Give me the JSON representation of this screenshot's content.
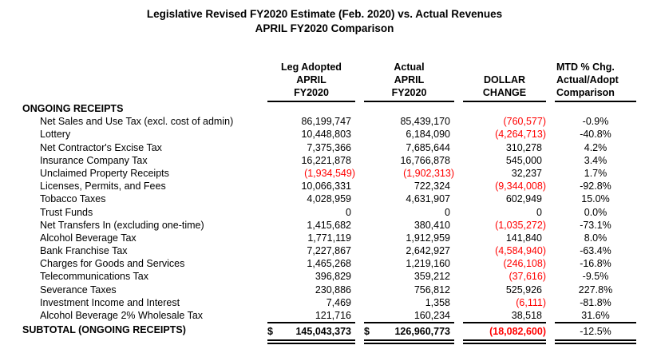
{
  "title": {
    "line1": "Legislative Revised FY2020 Estimate (Feb. 2020) vs. Actual Revenues",
    "line2": "APRIL FY2020 Comparison"
  },
  "columns": [
    {
      "lines": [
        "Leg Adopted",
        "APRIL",
        "FY2020"
      ]
    },
    {
      "lines": [
        "Actual",
        "APRIL",
        "FY2020"
      ]
    },
    {
      "lines": [
        "DOLLAR",
        "CHANGE"
      ]
    },
    {
      "lines": [
        "MTD % Chg.",
        "Actual/Adopt",
        "Comparison"
      ]
    }
  ],
  "section_header": "ONGOING RECEIPTS",
  "rows": [
    {
      "label": "Net Sales and Use Tax (excl. cost of admin)",
      "leg_adopted": "86,199,747",
      "actual": "85,439,170",
      "dollar_change": "(760,577)",
      "mtd_pct": "-0.9%"
    },
    {
      "label": "Lottery",
      "leg_adopted": "10,448,803",
      "actual": "6,184,090",
      "dollar_change": "(4,264,713)",
      "mtd_pct": "-40.8%"
    },
    {
      "label": "Net Contractor's Excise Tax",
      "leg_adopted": "7,375,366",
      "actual": "7,685,644",
      "dollar_change": "310,278",
      "mtd_pct": "4.2%"
    },
    {
      "label": "Insurance Company Tax",
      "leg_adopted": "16,221,878",
      "actual": "16,766,878",
      "dollar_change": "545,000",
      "mtd_pct": "3.4%"
    },
    {
      "label": "Unclaimed Property Receipts",
      "leg_adopted": "(1,934,549)",
      "actual": "(1,902,313)",
      "dollar_change": "32,237",
      "mtd_pct": "1.7%"
    },
    {
      "label": "Licenses, Permits, and Fees",
      "leg_adopted": "10,066,331",
      "actual": "722,324",
      "dollar_change": "(9,344,008)",
      "mtd_pct": "-92.8%"
    },
    {
      "label": "Tobacco Taxes",
      "leg_adopted": "4,028,959",
      "actual": "4,631,907",
      "dollar_change": "602,949",
      "mtd_pct": "15.0%"
    },
    {
      "label": "Trust Funds",
      "leg_adopted": "0",
      "actual": "0",
      "dollar_change": "0",
      "mtd_pct": "0.0%"
    },
    {
      "label": "Net Transfers In (excluding one-time)",
      "leg_adopted": "1,415,682",
      "actual": "380,410",
      "dollar_change": "(1,035,272)",
      "mtd_pct": "-73.1%"
    },
    {
      "label": "Alcohol Beverage Tax",
      "leg_adopted": "1,771,119",
      "actual": "1,912,959",
      "dollar_change": "141,840",
      "mtd_pct": "8.0%"
    },
    {
      "label": "Bank Franchise Tax",
      "leg_adopted": "7,227,867",
      "actual": "2,642,927",
      "dollar_change": "(4,584,940)",
      "mtd_pct": "-63.4%"
    },
    {
      "label": "Charges for Goods and Services",
      "leg_adopted": "1,465,268",
      "actual": "1,219,160",
      "dollar_change": "(246,108)",
      "mtd_pct": "-16.8%"
    },
    {
      "label": "Telecommunications Tax",
      "leg_adopted": "396,829",
      "actual": "359,212",
      "dollar_change": "(37,616)",
      "mtd_pct": "-9.5%"
    },
    {
      "label": "Severance Taxes",
      "leg_adopted": "230,886",
      "actual": "756,812",
      "dollar_change": "525,926",
      "mtd_pct": "227.8%"
    },
    {
      "label": "Investment Income and Interest",
      "leg_adopted": "7,469",
      "actual": "1,358",
      "dollar_change": "(6,111)",
      "mtd_pct": "-81.8%"
    },
    {
      "label": "Alcohol Beverage 2% Wholesale Tax",
      "leg_adopted": "121,716",
      "actual": "160,234",
      "dollar_change": "38,518",
      "mtd_pct": "31.6%"
    }
  ],
  "subtotal": {
    "label": "SUBTOTAL (ONGOING RECEIPTS)",
    "currency_symbol": "$",
    "leg_adopted": "145,043,373",
    "actual": "126,960,773",
    "dollar_change": "(18,082,600)",
    "mtd_pct": "-12.5%"
  },
  "colors": {
    "text": "#000000",
    "negative": "#FF0000",
    "background": "#FFFFFF",
    "rule": "#000000"
  }
}
